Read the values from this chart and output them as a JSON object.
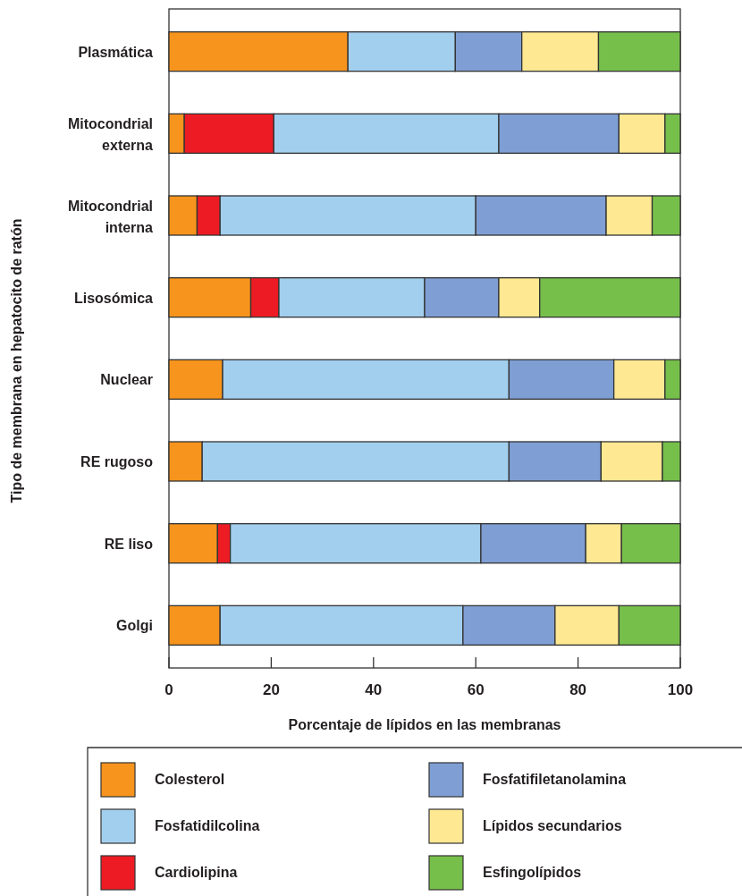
{
  "chart_data": {
    "type": "bar",
    "orientation": "horizontal",
    "stacked": true,
    "xlabel": "Porcentaje de lípidos en las membranas",
    "ylabel": "Tipo de membrana en hepatocito de ratón",
    "categories": [
      "Plasmática",
      "Mitocondrial externa",
      "Mitocondrial interna",
      "Lisosómica",
      "Nuclear",
      "RE rugoso",
      "RE liso",
      "Golgi"
    ],
    "series": [
      {
        "name": "Colesterol",
        "color": "#f7941d",
        "values": [
          35,
          3,
          5.5,
          16,
          10.5,
          6.5,
          9.5,
          10
        ]
      },
      {
        "name": "Cardiolipina",
        "color": "#ed1c24",
        "values": [
          0,
          17.5,
          4.5,
          5.5,
          0,
          0,
          2.5,
          0
        ]
      },
      {
        "name": "Fosfatidilcolina",
        "color": "#a3cfee",
        "values": [
          21,
          44,
          50,
          28.5,
          56,
          60,
          49,
          47.5
        ]
      },
      {
        "name": "Fosfatifiletanolamina",
        "color": "#7f9fd4",
        "values": [
          13,
          23.5,
          25.5,
          14.5,
          20.5,
          18,
          20.5,
          18
        ]
      },
      {
        "name": "Lípidos secundarios",
        "color": "#fee892",
        "values": [
          15,
          9,
          9,
          8,
          10,
          12,
          7,
          12.5
        ]
      },
      {
        "name": "Esfingolípidos",
        "color": "#76bf4b",
        "values": [
          16,
          3,
          5.5,
          27.5,
          3,
          3.5,
          11.5,
          12
        ]
      }
    ],
    "xlim": [
      0,
      100
    ],
    "xticks": [
      0,
      20,
      40,
      60,
      80,
      100
    ],
    "grid": false,
    "legend": "bottom"
  }
}
